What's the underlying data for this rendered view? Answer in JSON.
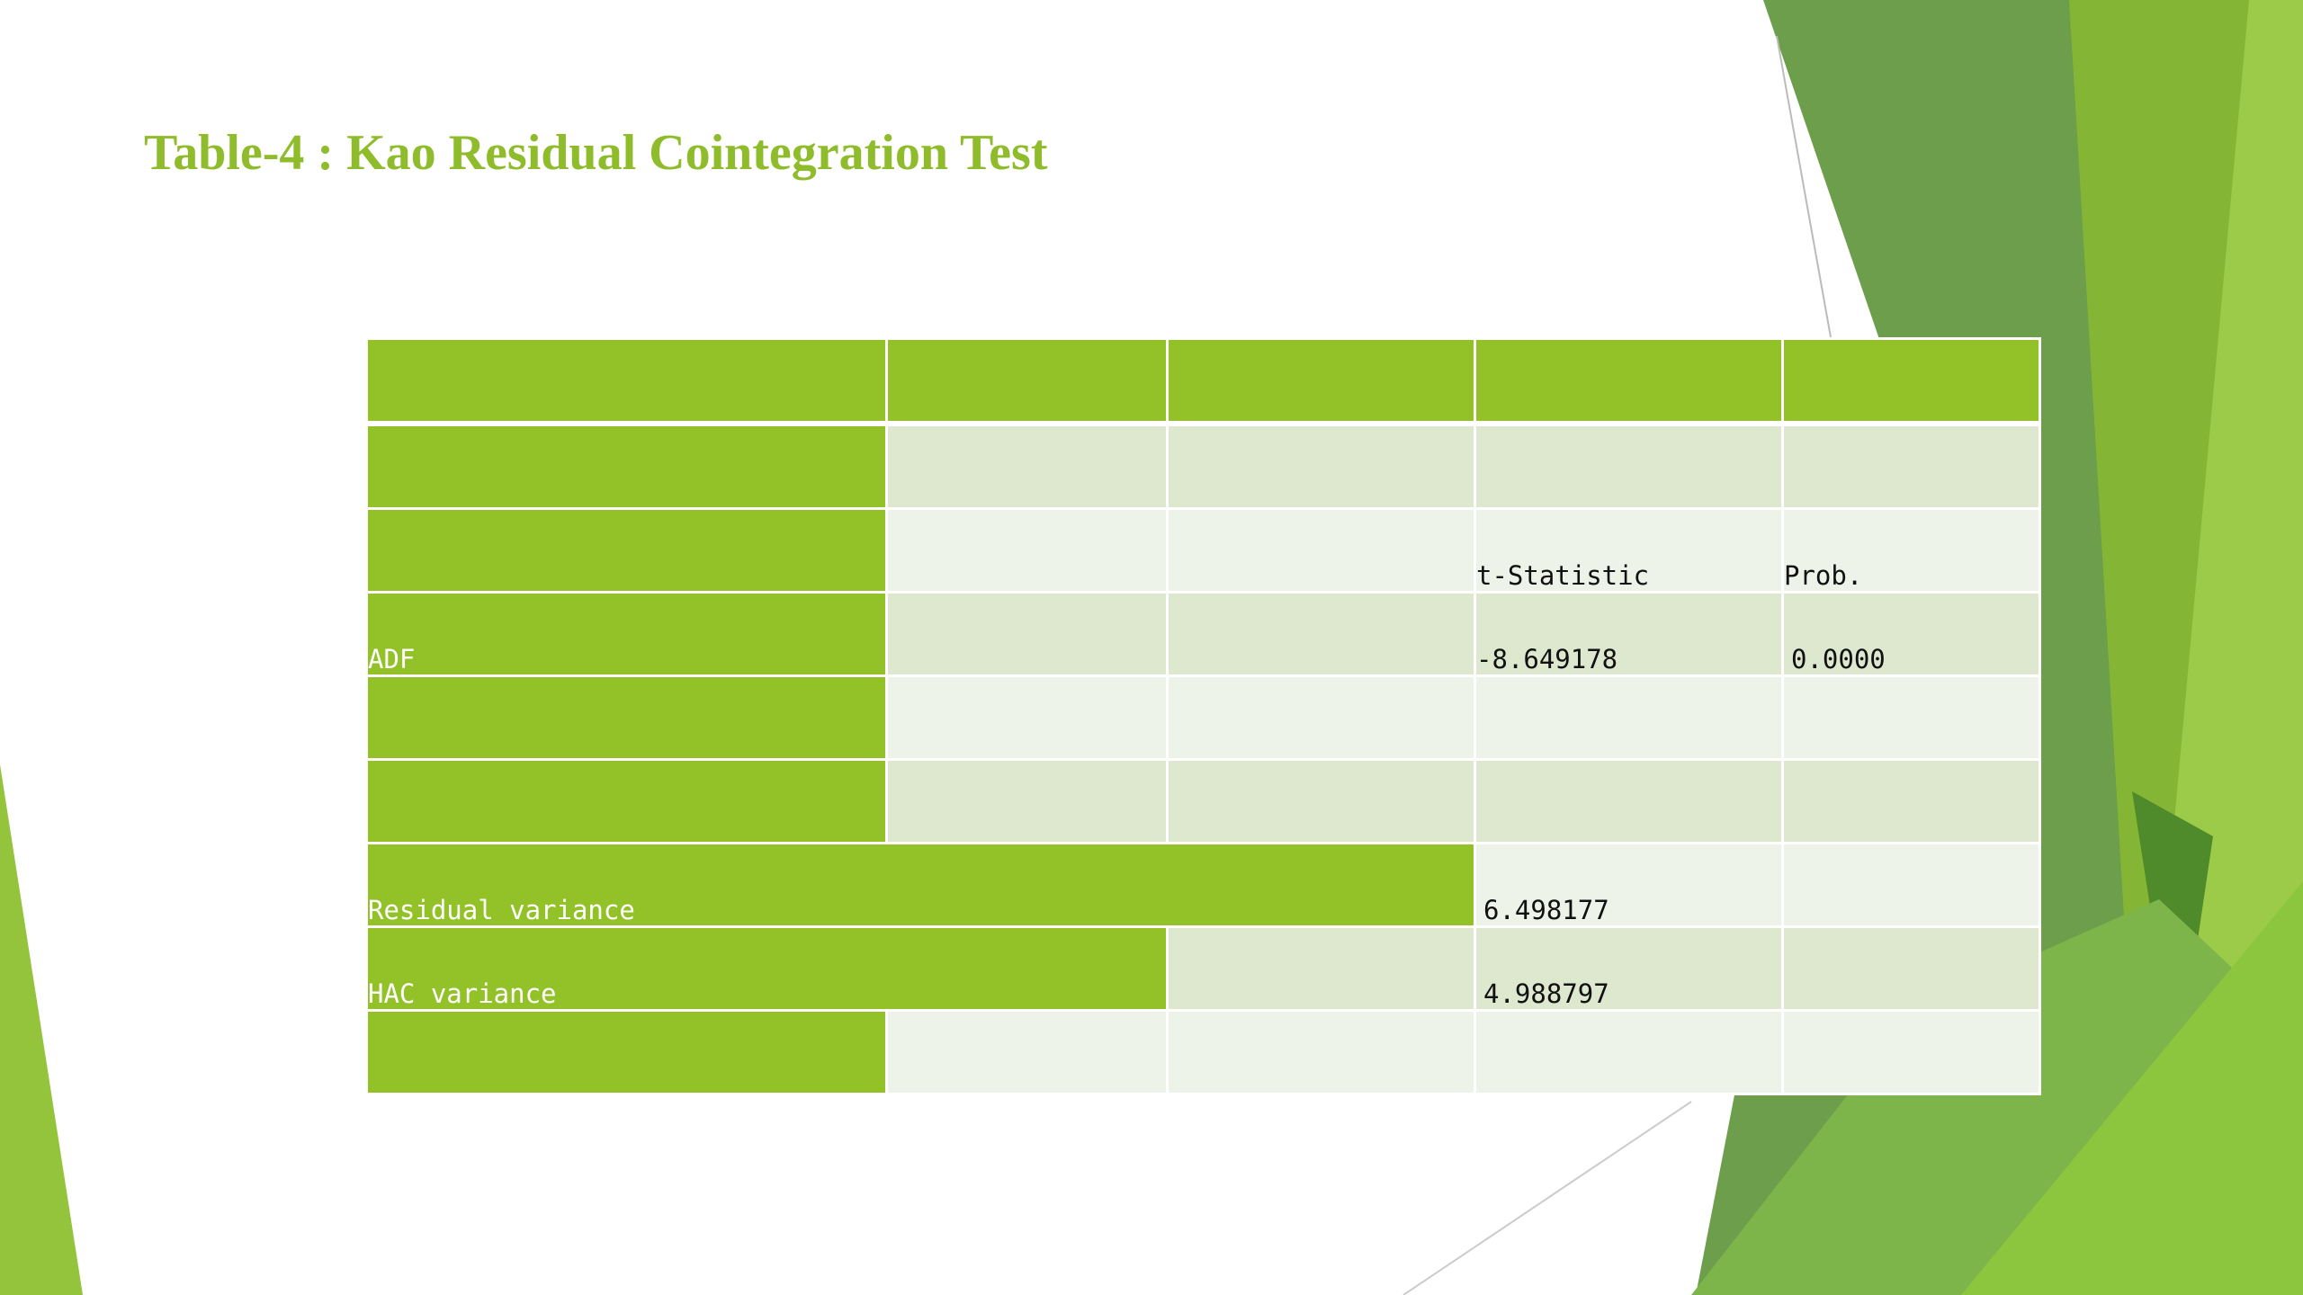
{
  "title": "Table-4 : Kao Residual Cointegration Test",
  "colors": {
    "accent_green": "#92c228",
    "title_green": "#8fbc2b",
    "row_light": "#dde8cf",
    "row_lighter": "#edf3e8"
  },
  "table": {
    "header_t_statistic": "t-Statistic",
    "header_prob": "Prob.",
    "adf_label": "ADF",
    "adf_t_statistic": "-8.649178",
    "adf_prob": "0.0000",
    "residual_variance_label": "Residual variance",
    "residual_variance_value": "6.498177",
    "hac_variance_label": "HAC variance",
    "hac_variance_value": "4.988797"
  }
}
